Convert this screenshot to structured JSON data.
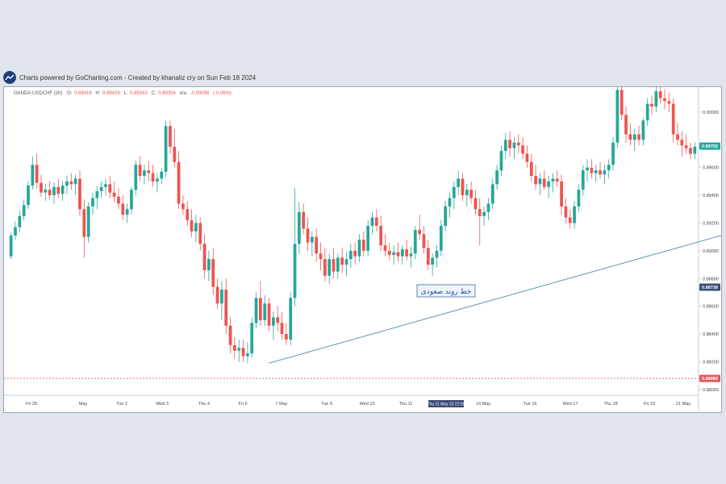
{
  "header": {
    "credit": "Charts powered by GoCharting.com - Created by khanaliz cry on Sun Feb 18 2024",
    "logo_icon": "gocharting-logo-icon"
  },
  "legend": {
    "symbol": "OANDA:USDCHF (2h)",
    "o_label": "O:",
    "o_value": "0.89418",
    "h_label": "H:",
    "h_value": "0.89429",
    "l_label": "L:",
    "l_value": "0.89343",
    "c_label": "C:",
    "c_value": "0.89354",
    "extra": "n/a",
    "change": "-0.00058",
    "change_pct": "(-0.06%)"
  },
  "annotation": {
    "trendline_label": "خط روند صعودی"
  },
  "colors": {
    "up": "#26a69a",
    "down": "#ef5350",
    "trend": "#5b8fb0",
    "dotted": "#e0585d",
    "price_badge": "#26a69a",
    "blue_badge": "#3b4c73",
    "red_badge": "#e0585d",
    "crosshair_badge": "#3b4c73"
  },
  "chart_data": {
    "type": "candlestick",
    "title": "",
    "x_ticks": [
      "Fri 28",
      "May",
      "Tue 2",
      "Wed 3",
      "Thu 4",
      "Fri 5",
      "7 May",
      "Tue 9",
      "Wed 10",
      "Thu 11",
      "14 May",
      "Tue 16",
      "Wed 17",
      "Thu 18",
      "Fri 19",
      "21 May"
    ],
    "crosshair_x_label": "Thu 11 May 23 22:00",
    "y_ticks": [
      "0.90000",
      "0.89600",
      "0.89400",
      "0.89200",
      "0.89000",
      "0.88800",
      "0.88600",
      "0.88400",
      "0.88200",
      "0.88000"
    ],
    "ylim": [
      0.8797,
      0.9018
    ],
    "price_badges": [
      {
        "label": "0.89755",
        "value": 0.89755,
        "role": "last"
      },
      {
        "label": "0.88738",
        "value": 0.88738,
        "role": "crosshair"
      },
      {
        "label": "0.88080",
        "value": 0.8808,
        "role": "level"
      }
    ],
    "horizontal_level": 0.8808,
    "trendline": {
      "from_index": 60,
      "from_price": 0.8819,
      "to_index": 205,
      "to_price": 0.8946
    },
    "ohlc": [
      [
        0.8896,
        0.8913,
        0.8894,
        0.8911
      ],
      [
        0.8911,
        0.8921,
        0.8908,
        0.8917
      ],
      [
        0.8917,
        0.8929,
        0.8914,
        0.8925
      ],
      [
        0.8925,
        0.8937,
        0.8922,
        0.8933
      ],
      [
        0.8933,
        0.895,
        0.893,
        0.8947
      ],
      [
        0.8947,
        0.8968,
        0.8944,
        0.8962
      ],
      [
        0.8962,
        0.897,
        0.8945,
        0.8949
      ],
      [
        0.8949,
        0.8955,
        0.8939,
        0.8942
      ],
      [
        0.8942,
        0.8948,
        0.8936,
        0.8944
      ],
      [
        0.8944,
        0.895,
        0.8937,
        0.894
      ],
      [
        0.894,
        0.8949,
        0.8934,
        0.8946
      ],
      [
        0.8946,
        0.8952,
        0.8938,
        0.8941
      ],
      [
        0.8941,
        0.895,
        0.8936,
        0.8947
      ],
      [
        0.8947,
        0.8954,
        0.8941,
        0.895
      ],
      [
        0.895,
        0.8956,
        0.8944,
        0.8948
      ],
      [
        0.8948,
        0.8955,
        0.894,
        0.8952
      ],
      [
        0.8952,
        0.8958,
        0.8925,
        0.893
      ],
      [
        0.893,
        0.8937,
        0.8895,
        0.891
      ],
      [
        0.891,
        0.8935,
        0.8906,
        0.8932
      ],
      [
        0.8932,
        0.8942,
        0.8926,
        0.8938
      ],
      [
        0.8938,
        0.8947,
        0.893,
        0.8943
      ],
      [
        0.8943,
        0.895,
        0.8938,
        0.8946
      ],
      [
        0.8946,
        0.8952,
        0.894,
        0.8948
      ],
      [
        0.8948,
        0.8954,
        0.8938,
        0.8942
      ],
      [
        0.8942,
        0.895,
        0.8935,
        0.8939
      ],
      [
        0.8939,
        0.8945,
        0.893,
        0.8934
      ],
      [
        0.8934,
        0.894,
        0.8922,
        0.8926
      ],
      [
        0.8926,
        0.8934,
        0.892,
        0.893
      ],
      [
        0.893,
        0.8946,
        0.8926,
        0.8944
      ],
      [
        0.8944,
        0.8965,
        0.894,
        0.8962
      ],
      [
        0.8962,
        0.8968,
        0.895,
        0.8954
      ],
      [
        0.8954,
        0.8962,
        0.8948,
        0.8958
      ],
      [
        0.8958,
        0.8965,
        0.895,
        0.8956
      ],
      [
        0.8956,
        0.8962,
        0.8946,
        0.895
      ],
      [
        0.895,
        0.8956,
        0.8942,
        0.8952
      ],
      [
        0.8952,
        0.896,
        0.8948,
        0.8957
      ],
      [
        0.8957,
        0.8994,
        0.8953,
        0.899
      ],
      [
        0.899,
        0.8994,
        0.897,
        0.8975
      ],
      [
        0.8975,
        0.8988,
        0.896,
        0.8964
      ],
      [
        0.8964,
        0.8972,
        0.893,
        0.8934
      ],
      [
        0.8934,
        0.894,
        0.8926,
        0.893
      ],
      [
        0.893,
        0.8936,
        0.8918,
        0.8922
      ],
      [
        0.8922,
        0.893,
        0.891,
        0.8914
      ],
      [
        0.8914,
        0.8926,
        0.8906,
        0.892
      ],
      [
        0.892,
        0.8924,
        0.89,
        0.8905
      ],
      [
        0.8905,
        0.8912,
        0.888,
        0.8886
      ],
      [
        0.8886,
        0.89,
        0.8878,
        0.8894
      ],
      [
        0.8894,
        0.8902,
        0.8868,
        0.8874
      ],
      [
        0.8874,
        0.888,
        0.8858,
        0.8862
      ],
      [
        0.8862,
        0.8878,
        0.885,
        0.8872
      ],
      [
        0.8872,
        0.888,
        0.884,
        0.8846
      ],
      [
        0.8846,
        0.8852,
        0.8826,
        0.8832
      ],
      [
        0.8832,
        0.8838,
        0.8822,
        0.8828
      ],
      [
        0.8828,
        0.8836,
        0.882,
        0.883
      ],
      [
        0.883,
        0.8836,
        0.882,
        0.8824
      ],
      [
        0.8824,
        0.8834,
        0.8819,
        0.8826
      ],
      [
        0.8826,
        0.8852,
        0.8823,
        0.8848
      ],
      [
        0.8848,
        0.887,
        0.8844,
        0.8866
      ],
      [
        0.8866,
        0.8878,
        0.8846,
        0.885
      ],
      [
        0.885,
        0.8868,
        0.8846,
        0.8862
      ],
      [
        0.8862,
        0.8866,
        0.8842,
        0.8846
      ],
      [
        0.8846,
        0.8856,
        0.8836,
        0.8852
      ],
      [
        0.8852,
        0.886,
        0.8842,
        0.8848
      ],
      [
        0.8848,
        0.8856,
        0.8836,
        0.884
      ],
      [
        0.884,
        0.8848,
        0.8832,
        0.8836
      ],
      [
        0.8836,
        0.887,
        0.8832,
        0.8866
      ],
      [
        0.8866,
        0.8945,
        0.886,
        0.8905
      ],
      [
        0.8905,
        0.8935,
        0.8898,
        0.8928
      ],
      [
        0.8928,
        0.8934,
        0.8912,
        0.8916
      ],
      [
        0.8916,
        0.8924,
        0.89,
        0.8906
      ],
      [
        0.8906,
        0.8914,
        0.8896,
        0.891
      ],
      [
        0.891,
        0.8916,
        0.8892,
        0.8898
      ],
      [
        0.8898,
        0.8906,
        0.8886,
        0.8894
      ],
      [
        0.8894,
        0.8902,
        0.8878,
        0.8882
      ],
      [
        0.8882,
        0.8898,
        0.8876,
        0.8894
      ],
      [
        0.8894,
        0.8902,
        0.888,
        0.8885
      ],
      [
        0.8885,
        0.8898,
        0.888,
        0.8895
      ],
      [
        0.8895,
        0.8902,
        0.8884,
        0.889
      ],
      [
        0.889,
        0.8899,
        0.8882,
        0.8894
      ],
      [
        0.8894,
        0.8905,
        0.8888,
        0.89
      ],
      [
        0.89,
        0.8906,
        0.889,
        0.8896
      ],
      [
        0.8896,
        0.8912,
        0.8892,
        0.8908
      ],
      [
        0.8908,
        0.8914,
        0.8896,
        0.89
      ],
      [
        0.89,
        0.8922,
        0.8896,
        0.8918
      ],
      [
        0.8918,
        0.8928,
        0.8912,
        0.8924
      ],
      [
        0.8924,
        0.893,
        0.8914,
        0.8918
      ],
      [
        0.8918,
        0.8925,
        0.89,
        0.8904
      ],
      [
        0.8904,
        0.8912,
        0.8896,
        0.89
      ],
      [
        0.89,
        0.8906,
        0.8893,
        0.8897
      ],
      [
        0.8897,
        0.8904,
        0.889,
        0.8899
      ],
      [
        0.8899,
        0.8906,
        0.8892,
        0.8896
      ],
      [
        0.8896,
        0.8904,
        0.889,
        0.8901
      ],
      [
        0.8901,
        0.8908,
        0.8893,
        0.8896
      ],
      [
        0.8896,
        0.8903,
        0.8888,
        0.8898
      ],
      [
        0.8898,
        0.8918,
        0.8894,
        0.8915
      ],
      [
        0.8915,
        0.8926,
        0.8908,
        0.8912
      ],
      [
        0.8912,
        0.8918,
        0.8898,
        0.8902
      ],
      [
        0.8902,
        0.8908,
        0.8886,
        0.889
      ],
      [
        0.889,
        0.8898,
        0.8882,
        0.8895
      ],
      [
        0.8895,
        0.8904,
        0.8888,
        0.89
      ],
      [
        0.89,
        0.8922,
        0.8896,
        0.8918
      ],
      [
        0.8918,
        0.8936,
        0.8914,
        0.8932
      ],
      [
        0.8932,
        0.8942,
        0.8924,
        0.8938
      ],
      [
        0.8938,
        0.895,
        0.893,
        0.8946
      ],
      [
        0.8946,
        0.8958,
        0.894,
        0.8952
      ],
      [
        0.8952,
        0.8956,
        0.8936,
        0.894
      ],
      [
        0.894,
        0.8948,
        0.8932,
        0.8944
      ],
      [
        0.8944,
        0.895,
        0.8934,
        0.8938
      ],
      [
        0.8938,
        0.8944,
        0.8926,
        0.893
      ],
      [
        0.893,
        0.8938,
        0.8904,
        0.8925
      ],
      [
        0.8925,
        0.8932,
        0.8918,
        0.8928
      ],
      [
        0.8928,
        0.8938,
        0.8922,
        0.8934
      ],
      [
        0.8934,
        0.8952,
        0.893,
        0.8948
      ],
      [
        0.8948,
        0.8962,
        0.8944,
        0.8958
      ],
      [
        0.8958,
        0.8976,
        0.8954,
        0.8972
      ],
      [
        0.8972,
        0.8985,
        0.8966,
        0.898
      ],
      [
        0.898,
        0.8986,
        0.8968,
        0.8974
      ],
      [
        0.8974,
        0.8982,
        0.8966,
        0.8978
      ],
      [
        0.8978,
        0.8984,
        0.897,
        0.8976
      ],
      [
        0.8976,
        0.8982,
        0.8966,
        0.897
      ],
      [
        0.897,
        0.8976,
        0.896,
        0.8964
      ],
      [
        0.8964,
        0.897,
        0.895,
        0.8954
      ],
      [
        0.8954,
        0.8962,
        0.8944,
        0.8948
      ],
      [
        0.8948,
        0.8956,
        0.894,
        0.8952
      ],
      [
        0.8952,
        0.8958,
        0.8944,
        0.8946
      ],
      [
        0.8946,
        0.8954,
        0.8938,
        0.895
      ],
      [
        0.895,
        0.8956,
        0.8942,
        0.8952
      ],
      [
        0.8952,
        0.8958,
        0.8946,
        0.895
      ],
      [
        0.895,
        0.8955,
        0.8926,
        0.8932
      ],
      [
        0.8932,
        0.8938,
        0.892,
        0.8924
      ],
      [
        0.8924,
        0.893,
        0.8916,
        0.892
      ],
      [
        0.892,
        0.8936,
        0.8916,
        0.8932
      ],
      [
        0.8932,
        0.8948,
        0.8928,
        0.8944
      ],
      [
        0.8944,
        0.8962,
        0.894,
        0.8958
      ],
      [
        0.8958,
        0.8966,
        0.895,
        0.896
      ],
      [
        0.896,
        0.8966,
        0.8952,
        0.8956
      ],
      [
        0.8956,
        0.8962,
        0.895,
        0.8958
      ],
      [
        0.8958,
        0.8964,
        0.8952,
        0.8955
      ],
      [
        0.8955,
        0.8962,
        0.8948,
        0.8958
      ],
      [
        0.8958,
        0.8966,
        0.8952,
        0.8962
      ],
      [
        0.8962,
        0.8982,
        0.8958,
        0.8978
      ],
      [
        0.8978,
        0.9018,
        0.8974,
        0.9016
      ],
      [
        0.9016,
        0.9018,
        0.8994,
        0.8998
      ],
      [
        0.8998,
        0.9004,
        0.8978,
        0.8984
      ],
      [
        0.8984,
        0.8992,
        0.8976,
        0.898
      ],
      [
        0.898,
        0.8988,
        0.8972,
        0.8984
      ],
      [
        0.8984,
        0.899,
        0.8976,
        0.898
      ],
      [
        0.898,
        0.8996,
        0.8976,
        0.8994
      ],
      [
        0.8994,
        0.901,
        0.899,
        0.9006
      ],
      [
        0.9006,
        0.9012,
        0.8998,
        0.9004
      ],
      [
        0.9004,
        0.9018,
        0.9,
        0.9015
      ],
      [
        0.9015,
        0.9018,
        0.9006,
        0.901
      ],
      [
        0.901,
        0.9016,
        0.9002,
        0.9008
      ],
      [
        0.9008,
        0.9014,
        0.9,
        0.9006
      ],
      [
        0.9006,
        0.901,
        0.8978,
        0.8984
      ],
      [
        0.8984,
        0.8992,
        0.8976,
        0.898
      ],
      [
        0.898,
        0.8986,
        0.8968,
        0.8976
      ],
      [
        0.8976,
        0.8984,
        0.897,
        0.8974
      ],
      [
        0.8974,
        0.8978,
        0.8966,
        0.897
      ],
      [
        0.897,
        0.8978,
        0.8966,
        0.8975
      ]
    ]
  }
}
